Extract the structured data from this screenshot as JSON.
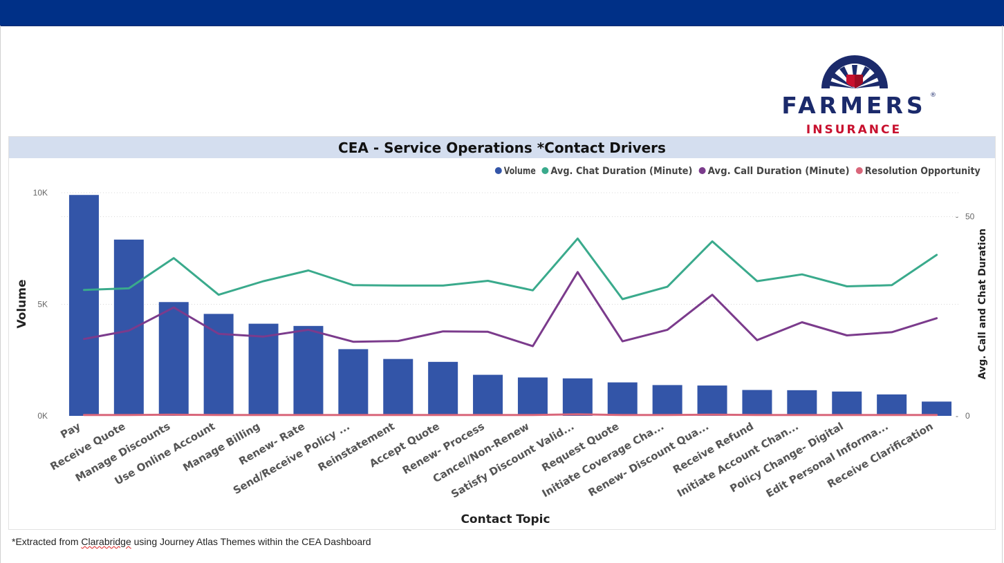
{
  "logo": {
    "wordmark": "FARMERS",
    "subline": "INSURANCE",
    "registered": "®",
    "colors": {
      "navy": "#1b2a6b",
      "red": "#c8102e"
    }
  },
  "colors": {
    "top_bar": "#003087",
    "title_bar": "#d4deef",
    "volume": "#3355a8",
    "chat": "#3aaa8c",
    "call": "#7b3b8c",
    "resolution": "#d9667a"
  },
  "footnote": {
    "prefix": "*Extracted from ",
    "source": "Clarabridge",
    "suffix": " using Journey Atlas Themes within the CEA Dashboard"
  },
  "chart_data": {
    "type": "bar",
    "title": "CEA - Service Operations *Contact Drivers",
    "xlabel": "Contact Topic",
    "ylabel": "Volume",
    "y2label": "Avg. Call and Chat Duration",
    "ylim": [
      0,
      10000
    ],
    "y_ticks": [
      {
        "value": 0,
        "label": "0K"
      },
      {
        "value": 5000,
        "label": "5K"
      },
      {
        "value": 10000,
        "label": "10K"
      }
    ],
    "y2lim": [
      0,
      56
    ],
    "y2_ticks": [
      {
        "value": 0,
        "label": "0"
      },
      {
        "value": 50,
        "label": "50"
      }
    ],
    "grid": true,
    "legend_position": "top-right",
    "categories": [
      "Pay",
      "Receive Quote",
      "Manage Discounts",
      "Use Online Account",
      "Manage Billing",
      "Renew- Rate",
      "Send/Receive Policy ...",
      "Reinstatement",
      "Accept Quote",
      "Renew- Process",
      "Cancel/Non-Renew",
      "Satisfy Discount Valid...",
      "Request Quote",
      "Initiate Coverage Cha...",
      "Renew- Discount Qua...",
      "Receive Refund",
      "Initiate Account Chan...",
      "Policy Change- Digital",
      "Edit Personal Informa...",
      "Receive Clarification"
    ],
    "series": [
      {
        "name": "Volume",
        "kind": "bar",
        "axis": "left",
        "color": "#3355a8",
        "values": [
          9900,
          7900,
          5100,
          4570,
          4130,
          4030,
          2990,
          2550,
          2420,
          1840,
          1720,
          1680,
          1500,
          1380,
          1360,
          1160,
          1150,
          1090,
          960,
          640
        ]
      },
      {
        "name": "Avg. Chat Duration (Minute)",
        "kind": "line",
        "axis": "right",
        "color": "#3aaa8c",
        "values": [
          31.6,
          32,
          39.6,
          30.4,
          33.8,
          36.5,
          32.8,
          32.7,
          32.7,
          33.9,
          31.5,
          44.5,
          29.3,
          32.4,
          43.8,
          33.8,
          35.5,
          32.5,
          32.8,
          40.4
        ]
      },
      {
        "name": "Avg. Call Duration (Minute)",
        "kind": "line",
        "axis": "right",
        "color": "#7b3b8c",
        "values": [
          19.3,
          21.4,
          27.2,
          20.6,
          19.9,
          21.6,
          18.6,
          18.8,
          21.2,
          21.1,
          17.5,
          36.1,
          18.7,
          21.6,
          30.4,
          19.0,
          23.5,
          20.2,
          21.0,
          24.5
        ]
      },
      {
        "name": "Resolution Opportunity",
        "kind": "line",
        "axis": "right",
        "color": "#d9667a",
        "values": [
          0.2,
          0.2,
          0.3,
          0.2,
          0.2,
          0.2,
          0.2,
          0.2,
          0.2,
          0.2,
          0.2,
          0.4,
          0.2,
          0.2,
          0.3,
          0.2,
          0.2,
          0.2,
          0.2,
          0.2
        ]
      }
    ]
  }
}
